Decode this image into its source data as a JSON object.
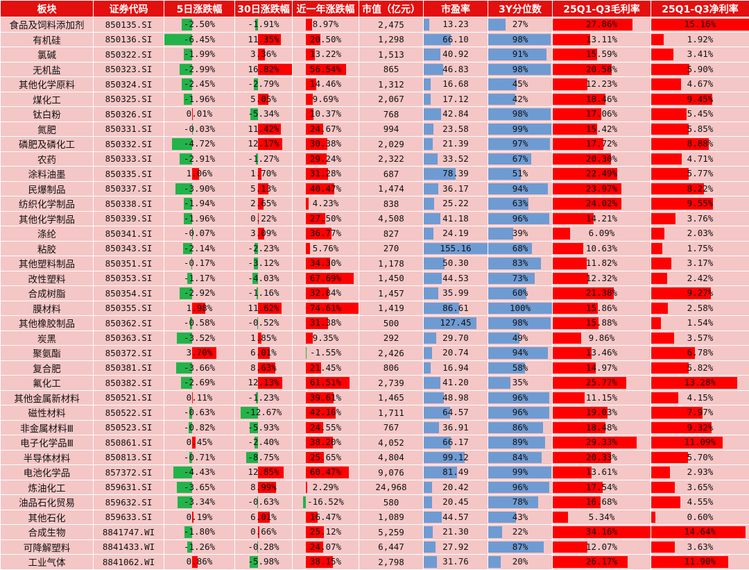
{
  "headers": {
    "sector": "板块",
    "code": "证券代码",
    "d5": "5日涨跌幅",
    "d30": "30日涨跌幅",
    "y1": "近一年涨跌幅",
    "cap": "市值（亿元）",
    "pe": "市盈率",
    "pct3y": "3Y分位数",
    "gm": "25Q1-Q3毛利率",
    "nm": "25Q1-Q3净利率"
  },
  "colors": {
    "header": "#e40f0f",
    "row_bg": "#f5c6c6",
    "up": "#ff0000",
    "down": "#22b34a",
    "pe_bar": "#6f9bd3"
  },
  "rows": [
    {
      "name": "食品及饲料添加剂",
      "code": "850135.SI",
      "d5": "-2.50%",
      "d30": "-1.91%",
      "y1": "8.97%",
      "cap": "2,475",
      "pe": "13.23",
      "pct": "27%",
      "gm": "27.86%",
      "nm": "15.16%"
    },
    {
      "name": "有机硅",
      "code": "850136.SI",
      "d5": "-6.45%",
      "d30": "11.35%",
      "y1": "20.50%",
      "cap": "1,298",
      "pe": "66.10",
      "pct": "98%",
      "gm": "13.11%",
      "nm": "1.92%"
    },
    {
      "name": "氯碱",
      "code": "850322.SI",
      "d5": "-1.99%",
      "d30": "3.36%",
      "y1": "13.22%",
      "cap": "1,513",
      "pe": "40.92",
      "pct": "91%",
      "gm": "15.59%",
      "nm": "3.41%"
    },
    {
      "name": "无机盐",
      "code": "850323.SI",
      "d5": "-2.99%",
      "d30": "16.82%",
      "y1": "56.54%",
      "cap": "865",
      "pe": "46.83",
      "pct": "98%",
      "gm": "20.58%",
      "nm": "5.90%"
    },
    {
      "name": "其他化学原料",
      "code": "850324.SI",
      "d5": "-2.45%",
      "d30": "-2.79%",
      "y1": "14.46%",
      "cap": "1,312",
      "pe": "16.68",
      "pct": "45%",
      "gm": "12.23%",
      "nm": "4.67%"
    },
    {
      "name": "煤化工",
      "code": "850325.SI",
      "d5": "-1.96%",
      "d30": "5.05%",
      "y1": "9.69%",
      "cap": "2,067",
      "pe": "17.12",
      "pct": "42%",
      "gm": "18.46%",
      "nm": "9.45%"
    },
    {
      "name": "钛白粉",
      "code": "850326.SI",
      "d5": "0.01%",
      "d30": "-5.34%",
      "y1": "10.37%",
      "cap": "768",
      "pe": "42.84",
      "pct": "98%",
      "gm": "17.06%",
      "nm": "5.45%"
    },
    {
      "name": "氮肥",
      "code": "850331.SI",
      "d5": "-0.03%",
      "d30": "11.42%",
      "y1": "24.67%",
      "cap": "994",
      "pe": "23.58",
      "pct": "99%",
      "gm": "15.42%",
      "nm": "5.85%"
    },
    {
      "name": "磷肥及磷化工",
      "code": "850332.SI",
      "d5": "-4.72%",
      "d30": "12.17%",
      "y1": "30.38%",
      "cap": "2,029",
      "pe": "21.39",
      "pct": "97%",
      "gm": "17.72%",
      "nm": "8.88%"
    },
    {
      "name": "农药",
      "code": "850333.SI",
      "d5": "-2.91%",
      "d30": "-1.27%",
      "y1": "29.24%",
      "cap": "2,322",
      "pe": "33.52",
      "pct": "67%",
      "gm": "20.30%",
      "nm": "4.71%"
    },
    {
      "name": "涂料油墨",
      "code": "850335.SI",
      "d5": "1.06%",
      "d30": "1.70%",
      "y1": "31.28%",
      "cap": "687",
      "pe": "78.39",
      "pct": "51%",
      "gm": "22.49%",
      "nm": "5.77%"
    },
    {
      "name": "民爆制品",
      "code": "850337.SI",
      "d5": "-3.90%",
      "d30": "5.13%",
      "y1": "40.47%",
      "cap": "1,474",
      "pe": "36.17",
      "pct": "94%",
      "gm": "23.97%",
      "nm": "8.22%"
    },
    {
      "name": "纺织化学制品",
      "code": "850338.SI",
      "d5": "-1.94%",
      "d30": "2.65%",
      "y1": "4.23%",
      "cap": "838",
      "pe": "25.22",
      "pct": "63%",
      "gm": "24.02%",
      "nm": "9.55%"
    },
    {
      "name": "其他化学制品",
      "code": "850339.SI",
      "d5": "-1.96%",
      "d30": "0.22%",
      "y1": "27.50%",
      "cap": "4,508",
      "pe": "41.18",
      "pct": "96%",
      "gm": "14.21%",
      "nm": "3.76%"
    },
    {
      "name": "涤纶",
      "code": "850341.SI",
      "d5": "-0.07%",
      "d30": "3.09%",
      "y1": "36.77%",
      "cap": "827",
      "pe": "24.19",
      "pct": "39%",
      "gm": "6.09%",
      "nm": "2.03%"
    },
    {
      "name": "粘胶",
      "code": "850343.SI",
      "d5": "-2.14%",
      "d30": "-2.23%",
      "y1": "5.76%",
      "cap": "270",
      "pe": "155.16",
      "pct": "68%",
      "gm": "10.63%",
      "nm": "1.75%"
    },
    {
      "name": "其他塑料制品",
      "code": "850351.SI",
      "d5": "-0.17%",
      "d30": "-3.12%",
      "y1": "34.30%",
      "cap": "1,178",
      "pe": "50.30",
      "pct": "83%",
      "gm": "11.82%",
      "nm": "3.17%"
    },
    {
      "name": "改性塑料",
      "code": "850353.SI",
      "d5": "-1.17%",
      "d30": "-4.03%",
      "y1": "67.69%",
      "cap": "1,450",
      "pe": "44.53",
      "pct": "73%",
      "gm": "12.32%",
      "nm": "2.42%"
    },
    {
      "name": "合成树脂",
      "code": "850354.SI",
      "d5": "-2.92%",
      "d30": "-1.16%",
      "y1": "32.84%",
      "cap": "1,457",
      "pe": "35.99",
      "pct": "60%",
      "gm": "21.38%",
      "nm": "9.27%"
    },
    {
      "name": "膜材料",
      "code": "850355.SI",
      "d5": "1.98%",
      "d30": "11.62%",
      "y1": "74.61%",
      "cap": "1,419",
      "pe": "86.61",
      "pct": "100%",
      "gm": "15.86%",
      "nm": "2.58%"
    },
    {
      "name": "其他橡胶制品",
      "code": "850362.SI",
      "d5": "-0.58%",
      "d30": "-0.52%",
      "y1": "31.38%",
      "cap": "500",
      "pe": "127.45",
      "pct": "98%",
      "gm": "15.88%",
      "nm": "1.54%"
    },
    {
      "name": "炭黑",
      "code": "850363.SI",
      "d5": "-3.52%",
      "d30": "1.85%",
      "y1": "9.35%",
      "cap": "292",
      "pe": "29.70",
      "pct": "49%",
      "gm": "9.86%",
      "nm": "3.57%"
    },
    {
      "name": "聚氨酯",
      "code": "850372.SI",
      "d5": "3.70%",
      "d30": "6.01%",
      "y1": "-1.55%",
      "cap": "2,426",
      "pe": "20.74",
      "pct": "94%",
      "gm": "13.46%",
      "nm": "6.78%"
    },
    {
      "name": "复合肥",
      "code": "850381.SI",
      "d5": "-3.66%",
      "d30": "8.63%",
      "y1": "21.45%",
      "cap": "806",
      "pe": "16.94",
      "pct": "58%",
      "gm": "14.97%",
      "nm": "5.82%"
    },
    {
      "name": "氟化工",
      "code": "850382.SI",
      "d5": "-2.69%",
      "d30": "12.13%",
      "y1": "61.51%",
      "cap": "2,739",
      "pe": "41.20",
      "pct": "35%",
      "gm": "25.77%",
      "nm": "13.28%"
    },
    {
      "name": "其他金属新材料",
      "code": "850521.SI",
      "d5": "0.11%",
      "d30": "-1.23%",
      "y1": "39.61%",
      "cap": "1,465",
      "pe": "48.98",
      "pct": "96%",
      "gm": "11.15%",
      "nm": "4.15%"
    },
    {
      "name": "磁性材料",
      "code": "850522.SI",
      "d5": "-0.63%",
      "d30": "-12.67%",
      "y1": "42.16%",
      "cap": "1,711",
      "pe": "64.57",
      "pct": "96%",
      "gm": "19.03%",
      "nm": "7.97%"
    },
    {
      "name": "非金属材料Ⅲ",
      "code": "850523.SI",
      "d5": "-0.82%",
      "d30": "-5.93%",
      "y1": "24.55%",
      "cap": "767",
      "pe": "36.91",
      "pct": "86%",
      "gm": "18.48%",
      "nm": "9.32%"
    },
    {
      "name": "电子化学品Ⅲ",
      "code": "850861.SI",
      "d5": "0.45%",
      "d30": "-2.40%",
      "y1": "38.20%",
      "cap": "4,052",
      "pe": "66.17",
      "pct": "89%",
      "gm": "29.33%",
      "nm": "11.09%"
    },
    {
      "name": "半导体材料",
      "code": "850813.SI",
      "d5": "-0.71%",
      "d30": "-8.75%",
      "y1": "25.65%",
      "cap": "4,804",
      "pe": "99.12",
      "pct": "84%",
      "gm": "20.33%",
      "nm": "5.70%"
    },
    {
      "name": "电池化学品",
      "code": "857372.SI",
      "d5": "-4.43%",
      "d30": "12.85%",
      "y1": "60.47%",
      "cap": "9,076",
      "pe": "81.49",
      "pct": "99%",
      "gm": "13.61%",
      "nm": "2.93%"
    },
    {
      "name": "炼油化工",
      "code": "859631.SI",
      "d5": "-3.65%",
      "d30": "8.99%",
      "y1": "2.29%",
      "cap": "24,968",
      "pe": "20.42",
      "pct": "96%",
      "gm": "17.54%",
      "nm": "3.65%"
    },
    {
      "name": "油品石化贸易",
      "code": "859632.SI",
      "d5": "-3.34%",
      "d30": "-0.63%",
      "y1": "-16.52%",
      "cap": "580",
      "pe": "20.45",
      "pct": "78%",
      "gm": "16.68%",
      "nm": "4.55%"
    },
    {
      "name": "其他石化",
      "code": "859633.SI",
      "d5": "0.19%",
      "d30": "6.01%",
      "y1": "16.47%",
      "cap": "1,089",
      "pe": "44.57",
      "pct": "43%",
      "gm": "5.34%",
      "nm": "0.60%"
    },
    {
      "name": "合成生物",
      "code": "8841747.WI",
      "d5": "-1.80%",
      "d30": "0.66%",
      "y1": "25.12%",
      "cap": "5,259",
      "pe": "21.30",
      "pct": "22%",
      "gm": "34.16%",
      "nm": "14.64%"
    },
    {
      "name": "可降解塑料",
      "code": "8841433.WI",
      "d5": "-1.26%",
      "d30": "-0.28%",
      "y1": "24.07%",
      "cap": "6,447",
      "pe": "27.92",
      "pct": "87%",
      "gm": "12.07%",
      "nm": "3.63%"
    },
    {
      "name": "工业气体",
      "code": "8841062.WI",
      "d5": "0.86%",
      "d30": "-5.98%",
      "y1": "38.15%",
      "cap": "2,798",
      "pe": "31.76",
      "pct": "20%",
      "gm": "26.17%",
      "nm": "11.90%"
    }
  ]
}
